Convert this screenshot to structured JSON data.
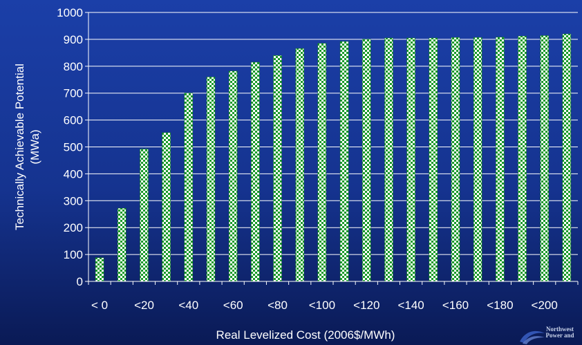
{
  "chart_data": {
    "type": "bar",
    "title": "",
    "xlabel": "Real Levelized Cost (2006$/MWh)",
    "ylabel": "Technically Achievable Potential (MWa)",
    "ylabel_lines": [
      "Technically Achievable Potential",
      "(MWa)"
    ],
    "ylim": [
      0,
      1000
    ],
    "yticks": [
      0,
      100,
      200,
      300,
      400,
      500,
      600,
      700,
      800,
      900,
      1000
    ],
    "categories": [
      "< 0",
      "<10",
      "<20",
      "<30",
      "<40",
      "<50",
      "<60",
      "<70",
      "<80",
      "<90",
      "<100",
      "<110",
      "<120",
      "<130",
      "<140",
      "<150",
      "<160",
      "<170",
      "<180",
      "<190",
      "<200",
      "<210"
    ],
    "tick_labels_shown": [
      "< 0",
      "<20",
      "<40",
      "<60",
      "<80",
      "<100",
      "<120",
      "<140",
      "<160",
      "<180",
      "<200"
    ],
    "values": [
      88,
      272,
      492,
      553,
      700,
      760,
      782,
      815,
      840,
      866,
      885,
      892,
      900,
      905,
      905,
      905,
      907,
      907,
      908,
      912,
      914,
      920
    ],
    "grid": true,
    "legend": "none",
    "colors": {
      "bar_primary": "#1a9a2a",
      "bar_secondary": "#ffffff",
      "gridline": "#ffffff",
      "text": "#ffffff"
    }
  },
  "logo": {
    "lines": [
      "Northwest",
      "Power and"
    ]
  }
}
